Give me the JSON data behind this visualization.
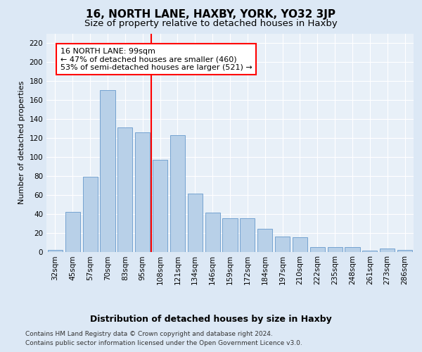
{
  "title": "16, NORTH LANE, HAXBY, YORK, YO32 3JP",
  "subtitle": "Size of property relative to detached houses in Haxby",
  "xlabel": "Distribution of detached houses by size in Haxby",
  "ylabel": "Number of detached properties",
  "footer_line1": "Contains HM Land Registry data © Crown copyright and database right 2024.",
  "footer_line2": "Contains public sector information licensed under the Open Government Licence v3.0.",
  "categories": [
    "32sqm",
    "45sqm",
    "57sqm",
    "70sqm",
    "83sqm",
    "95sqm",
    "108sqm",
    "121sqm",
    "134sqm",
    "146sqm",
    "159sqm",
    "172sqm",
    "184sqm",
    "197sqm",
    "210sqm",
    "222sqm",
    "235sqm",
    "248sqm",
    "261sqm",
    "273sqm",
    "286sqm"
  ],
  "values": [
    2,
    42,
    79,
    170,
    131,
    126,
    97,
    123,
    61,
    41,
    35,
    35,
    24,
    16,
    15,
    5,
    5,
    5,
    1,
    3,
    2
  ],
  "bar_color": "#b8d0e8",
  "bar_edge_color": "#6699cc",
  "vline_x": 5.5,
  "vline_color": "red",
  "annotation_text": "16 NORTH LANE: 99sqm\n← 47% of detached houses are smaller (460)\n53% of semi-detached houses are larger (521) →",
  "annotation_box_color": "white",
  "annotation_box_edge_color": "red",
  "ylim": [
    0,
    230
  ],
  "yticks": [
    0,
    20,
    40,
    60,
    80,
    100,
    120,
    140,
    160,
    180,
    200,
    220
  ],
  "bg_color": "#dce8f5",
  "plot_bg_color": "#e8f0f8",
  "title_fontsize": 11,
  "subtitle_fontsize": 9.5,
  "ylabel_fontsize": 8,
  "xlabel_fontsize": 9,
  "tick_fontsize": 7.5,
  "annotation_fontsize": 8,
  "footer_fontsize": 6.5
}
